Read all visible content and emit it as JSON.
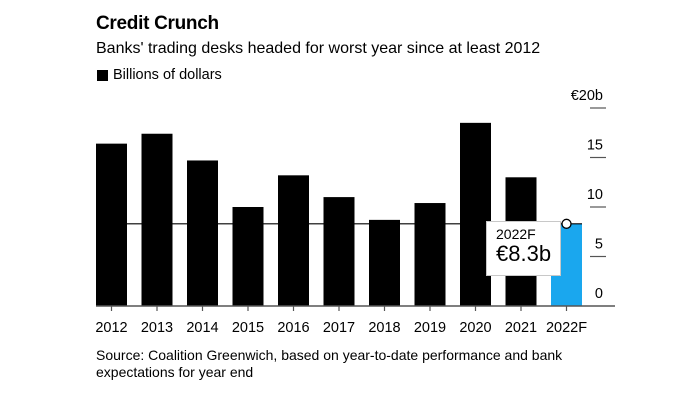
{
  "header": {
    "title": "Credit Crunch",
    "subtitle": "Banks' trading desks headed for worst year since at least 2012",
    "legend_label": "Billions of dollars"
  },
  "callout": {
    "label": "2022F",
    "value": "€8.3b"
  },
  "source": "Source: Coalition Greenwich, based on year-to-date performance and bank expectations for year end",
  "colors": {
    "bar": "#000000",
    "highlight": "#1aa7ee"
  },
  "chart_data": {
    "type": "bar",
    "title": "Credit Crunch",
    "subtitle": "Banks' trading desks headed for worst year since at least 2012",
    "xlabel": "",
    "ylabel": "",
    "categories": [
      "2012",
      "2013",
      "2014",
      "2015",
      "2016",
      "2017",
      "2018",
      "2019",
      "2020",
      "2021",
      "2022F"
    ],
    "series": [
      {
        "name": "Billions of dollars",
        "values": [
          16.4,
          17.4,
          14.7,
          10.0,
          13.2,
          11.0,
          8.7,
          10.4,
          18.5,
          13.0,
          8.3
        ]
      }
    ],
    "highlight_category": "2022F",
    "reference_line": 8.3,
    "ylim": [
      0,
      20
    ],
    "yticks": [
      0,
      5,
      10,
      15,
      20
    ],
    "ytick_labels": [
      "0",
      "5",
      "10",
      "15",
      "€20b"
    ],
    "y_axis_position": "right",
    "grid": false,
    "legend": "top-left"
  }
}
